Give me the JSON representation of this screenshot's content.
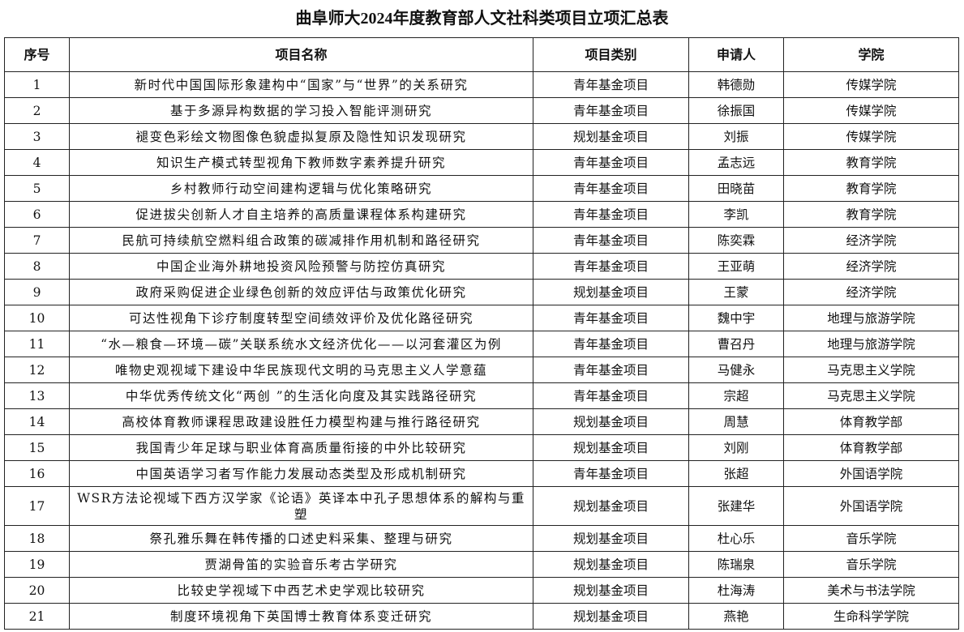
{
  "title": "曲阜师大2024年度教育部人文社科类项目立项汇总表",
  "headers": [
    "序号",
    "项目名称",
    "项目类别",
    "申请人",
    "学院"
  ],
  "rows": [
    [
      "1",
      "新时代中国国际形象建构中“国家”与“世界”的关系研究",
      "青年基金项目",
      "韩德勋",
      "传媒学院"
    ],
    [
      "2",
      "基于多源异构数据的学习投入智能评测研究",
      "青年基金项目",
      "徐振国",
      "传媒学院"
    ],
    [
      "3",
      "褪变色彩绘文物图像色貌虚拟复原及隐性知识发现研究",
      "规划基金项目",
      "刘振",
      "传媒学院"
    ],
    [
      "4",
      "知识生产模式转型视角下教师数字素养提升研究",
      "青年基金项目",
      "孟志远",
      "教育学院"
    ],
    [
      "5",
      "乡村教师行动空间建构逻辑与优化策略研究",
      "青年基金项目",
      "田晓苗",
      "教育学院"
    ],
    [
      "6",
      "促进拔尖创新人才自主培养的高质量课程体系构建研究",
      "青年基金项目",
      "李凯",
      "教育学院"
    ],
    [
      "7",
      "民航可持续航空燃料组合政策的碳减排作用机制和路径研究",
      "青年基金项目",
      "陈奕霖",
      "经济学院"
    ],
    [
      "8",
      "中国企业海外耕地投资风险预警与防控仿真研究",
      "青年基金项目",
      "王亚萌",
      "经济学院"
    ],
    [
      "9",
      "政府采购促进企业绿色创新的效应评估与政策优化研究",
      "规划基金项目",
      "王蒙",
      "经济学院"
    ],
    [
      "10",
      "可达性视角下诊疗制度转型空间绩效评价及优化路径研究",
      "青年基金项目",
      "魏中宇",
      "地理与旅游学院"
    ],
    [
      "11",
      "“水—粮食—环境—碳”关联系统水文经济优化——以河套灌区为例",
      "青年基金项目",
      "曹召丹",
      "地理与旅游学院"
    ],
    [
      "12",
      "唯物史观视域下建设中华民族现代文明的马克思主义人学意蕴",
      "青年基金项目",
      "马健永",
      "马克思主义学院"
    ],
    [
      "13",
      "中华优秀传统文化“两创 ”的生活化向度及其实践路径研究",
      "青年基金项目",
      "宗超",
      "马克思主义学院"
    ],
    [
      "14",
      "高校体育教师课程思政建设胜任力模型构建与推行路径研究",
      "规划基金项目",
      "周慧",
      "体育教学部"
    ],
    [
      "15",
      "我国青少年足球与职业体育高质量衔接的中外比较研究",
      "规划基金项目",
      "刘刚",
      "体育教学部"
    ],
    [
      "16",
      "中国英语学习者写作能力发展动态类型及形成机制研究",
      "青年基金项目",
      "张超",
      "外国语学院"
    ],
    [
      "17",
      "WSR方法论视域下西方汉学家《论语》英译本中孔子思想体系的解构与重塑",
      "规划基金项目",
      "张建华",
      "外国语学院"
    ],
    [
      "18",
      "祭孔雅乐舞在韩传播的口述史料采集、整理与研究",
      "规划基金项目",
      "杜心乐",
      "音乐学院"
    ],
    [
      "19",
      "贾湖骨笛的实验音乐考古学研究",
      "规划基金项目",
      "陈瑞泉",
      "音乐学院"
    ],
    [
      "20",
      "比较史学视域下中西艺术史学观比较研究",
      "规划基金项目",
      "杜海涛",
      "美术与书法学院"
    ],
    [
      "21",
      "制度环境视角下英国博士教育体系变迁研究",
      "规划基金项目",
      "燕艳",
      "生命科学学院"
    ]
  ]
}
